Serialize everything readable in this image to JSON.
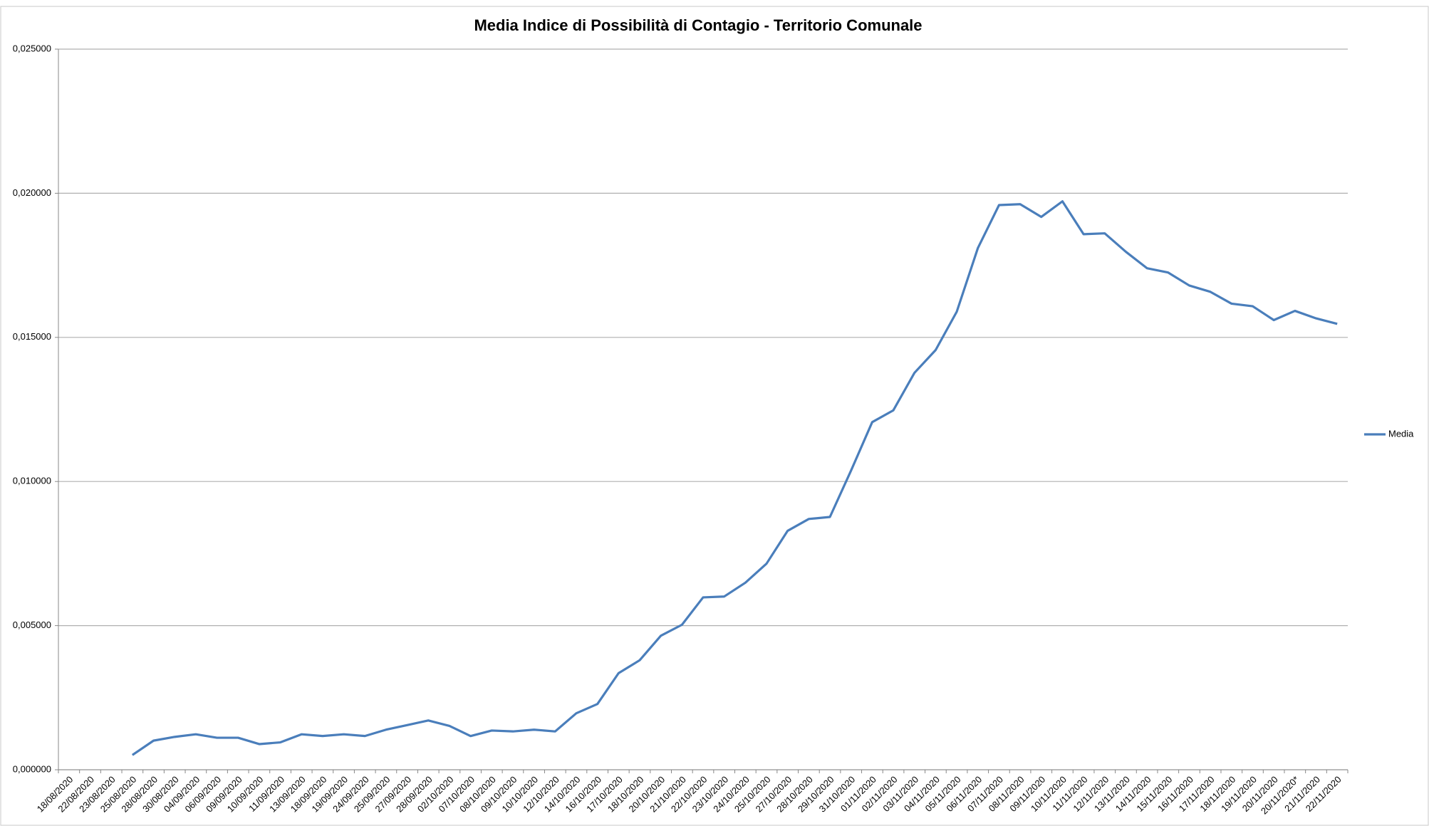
{
  "chart_data": {
    "type": "line",
    "title": "Media Indice di Possibilità di Contagio - Territorio Comunale",
    "categories": [
      "18/08/2020",
      "22/08/2020",
      "23/08/2020",
      "25/08/2020",
      "28/08/2020",
      "30/08/2020",
      "04/09/2020",
      "06/09/2020",
      "09/09/2020",
      "10/09/2020",
      "11/09/2020",
      "13/09/2020",
      "18/09/2020",
      "19/09/2020",
      "24/09/2020",
      "25/09/2020",
      "27/09/2020",
      "28/09/2020",
      "02/10/2020",
      "07/10/2020",
      "08/10/2020",
      "09/10/2020",
      "10/10/2020",
      "12/10/2020",
      "14/10/2020",
      "16/10/2020",
      "17/10/2020",
      "18/10/2020",
      "20/10/2020",
      "21/10/2020",
      "22/10/2020",
      "23/10/2020",
      "24/10/2020",
      "25/10/2020",
      "27/10/2020",
      "28/10/2020",
      "29/10/2020",
      "31/10/2020",
      "01/11/2020",
      "02/11/2020",
      "03/11/2020",
      "04/11/2020",
      "05/11/2020",
      "06/11/2020",
      "07/11/2020",
      "08/11/2020",
      "09/11/2020",
      "10/11/2020",
      "11/11/2020",
      "12/11/2020",
      "13/11/2020",
      "14/11/2020",
      "15/11/2020",
      "16/11/2020",
      "17/11/2020",
      "18/11/2020",
      "19/11/2020",
      "20/11/2020",
      "20/11/2020*",
      "21/11/2020",
      "22/11/2020"
    ],
    "series": [
      {
        "name": "Media",
        "color": "#4a7ebb",
        "values": [
          null,
          null,
          null,
          0.00051,
          0.00101,
          0.00114,
          0.00123,
          0.00111,
          0.00111,
          0.00089,
          0.00095,
          0.00123,
          0.00117,
          0.00123,
          0.00117,
          0.00139,
          0.00155,
          0.00171,
          0.00152,
          0.00117,
          0.00136,
          0.00133,
          0.00139,
          0.00133,
          0.00196,
          0.00228,
          0.00335,
          0.0038,
          0.00465,
          0.00503,
          0.00598,
          0.00601,
          0.00649,
          0.00715,
          0.00829,
          0.0087,
          0.00877,
          0.01038,
          0.01206,
          0.01247,
          0.01377,
          0.01456,
          0.01589,
          0.0181,
          0.01959,
          0.01962,
          0.01918,
          0.01972,
          0.01858,
          0.01861,
          0.01797,
          0.0174,
          0.01725,
          0.0168,
          0.01658,
          0.01617,
          0.01608,
          0.0156,
          0.01592,
          0.01566,
          0.01547
        ]
      }
    ],
    "ylim": [
      0,
      0.025
    ],
    "yticks": [
      {
        "value": 0,
        "label": "0,000000"
      },
      {
        "value": 0.005,
        "label": "0,005000"
      },
      {
        "value": 0.01,
        "label": "0,010000"
      },
      {
        "value": 0.015,
        "label": "0,015000"
      },
      {
        "value": 0.02,
        "label": "0,020000"
      },
      {
        "value": 0.025,
        "label": "0,025000"
      }
    ],
    "grid": true,
    "legend": "right"
  }
}
